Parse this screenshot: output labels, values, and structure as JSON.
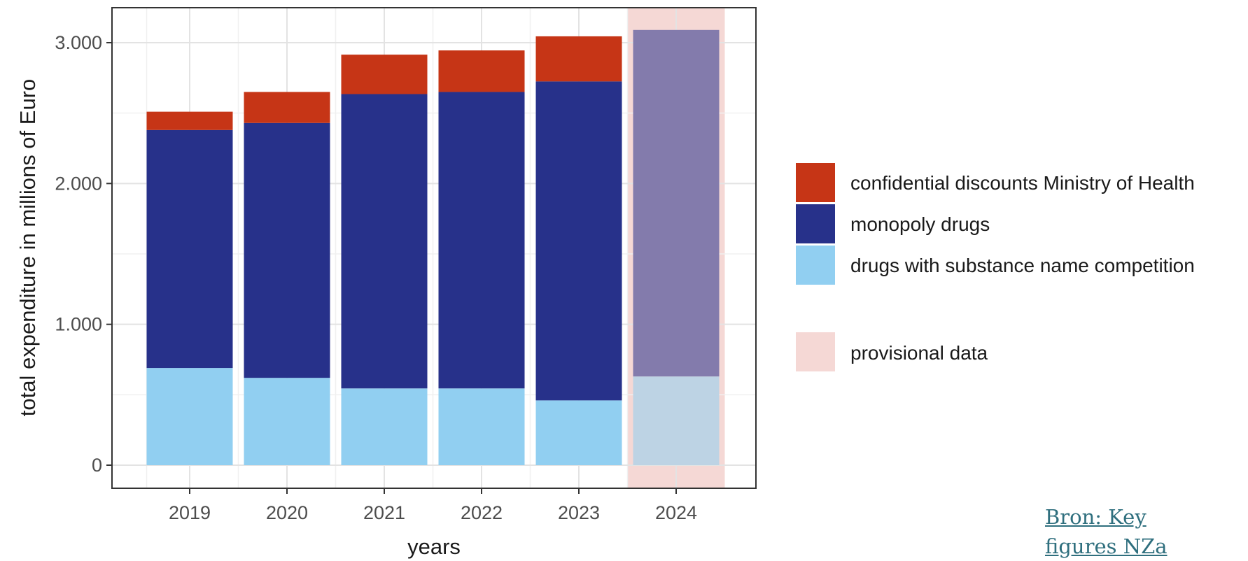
{
  "chart_data": {
    "type": "bar",
    "stacked": true,
    "xlabel": "years",
    "ylabel": "total expenditure in millions of Euro",
    "categories": [
      "2019",
      "2020",
      "2021",
      "2022",
      "2023",
      "2024"
    ],
    "ylim": [
      0,
      3200
    ],
    "yticks": [
      0,
      1000,
      2000,
      3000
    ],
    "ytick_labels": [
      "0",
      "1.000",
      "2.000",
      "3.000"
    ],
    "grid": true,
    "legend_position": "right",
    "series": [
      {
        "name": "drugs with substance name competition",
        "color": "#91CFF1",
        "values": [
          690,
          620,
          545,
          545,
          460,
          630
        ]
      },
      {
        "name": "monopoly drugs",
        "color": "#27318A",
        "values": [
          1690,
          1810,
          2090,
          2105,
          2265,
          2460
        ]
      },
      {
        "name": "confidential discounts Ministry of Health",
        "color": "#C63516",
        "values": [
          130,
          220,
          280,
          295,
          320,
          0
        ]
      }
    ],
    "legend_order": [
      2,
      1,
      0
    ],
    "provisional": {
      "label": "provisional data",
      "categories": [
        "2024"
      ],
      "color": "#F5D8D5"
    }
  },
  "source": {
    "label": "Bron: Key figures NZa"
  }
}
